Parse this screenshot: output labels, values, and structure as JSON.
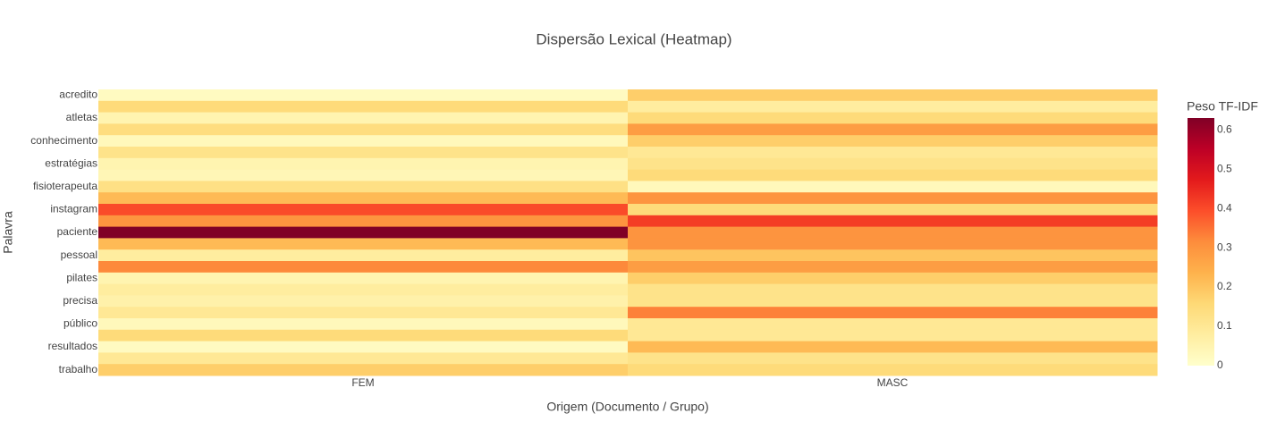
{
  "chart_data": {
    "type": "heatmap",
    "title": "Dispersão Lexical (Heatmap)",
    "x_label": "Origem (Documento / Grupo)",
    "y_label": "Palavra",
    "x": [
      "FEM",
      "MASC"
    ],
    "categories": [
      "acredito",
      null,
      "atletas",
      null,
      "conhecimento",
      null,
      "estratégias",
      null,
      "fisioterapeuta",
      null,
      "instagram",
      null,
      "paciente",
      null,
      "pessoal",
      null,
      "pilates",
      null,
      "precisa",
      null,
      "público",
      null,
      "resultados",
      null,
      "trabalho"
    ],
    "z": [
      [
        0.02,
        0.18
      ],
      [
        0.15,
        0.08
      ],
      [
        0.05,
        0.15
      ],
      [
        0.14,
        0.28
      ],
      [
        0.03,
        0.18
      ],
      [
        0.12,
        0.1
      ],
      [
        0.05,
        0.12
      ],
      [
        0.04,
        0.15
      ],
      [
        0.13,
        0.03
      ],
      [
        0.22,
        0.3
      ],
      [
        0.4,
        0.15
      ],
      [
        0.3,
        0.42
      ],
      [
        0.63,
        0.3
      ],
      [
        0.22,
        0.3
      ],
      [
        0.08,
        0.2
      ],
      [
        0.32,
        0.28
      ],
      [
        0.05,
        0.18
      ],
      [
        0.08,
        0.12
      ],
      [
        0.06,
        0.12
      ],
      [
        0.1,
        0.33
      ],
      [
        0.03,
        0.1
      ],
      [
        0.15,
        0.1
      ],
      [
        0.02,
        0.22
      ],
      [
        0.1,
        0.12
      ],
      [
        0.18,
        0.15
      ]
    ],
    "zlim": [
      0,
      0.63
    ],
    "zticks": [
      0,
      0.1,
      0.2,
      0.3,
      0.4,
      0.5,
      0.6
    ],
    "colorbar_title": "Peso TF-IDF",
    "colorscale": [
      [
        0,
        "#ffffcc"
      ],
      [
        0.125,
        "#ffeda0"
      ],
      [
        0.25,
        "#fed976"
      ],
      [
        0.375,
        "#feb24c"
      ],
      [
        0.5,
        "#fd8d3c"
      ],
      [
        0.625,
        "#fc4e2a"
      ],
      [
        0.75,
        "#e31a1c"
      ],
      [
        0.875,
        "#bd0026"
      ],
      [
        1,
        "#800026"
      ]
    ]
  }
}
